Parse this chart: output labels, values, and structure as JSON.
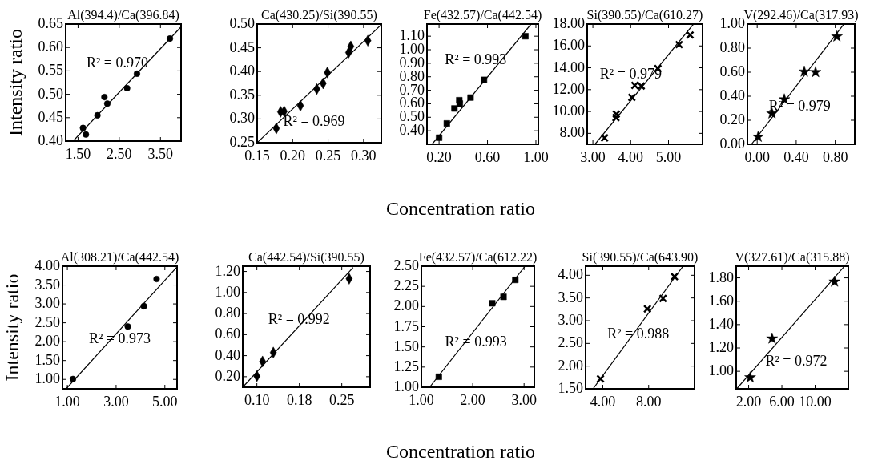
{
  "chart_data": [
    {
      "type": "scatter",
      "title": "Al(394.4)/Ca(396.84)",
      "ylabel": "Intensity ratio",
      "xlim": [
        1.2,
        4.0
      ],
      "ylim": [
        0.4,
        0.65
      ],
      "xticks": [
        {
          "value": 1.5,
          "label": "1.50"
        },
        {
          "value": 2.5,
          "label": "2.50"
        },
        {
          "value": 3.5,
          "label": "3.50"
        }
      ],
      "yticks": [
        {
          "value": 0.4,
          "label": "0.40"
        },
        0.45,
        {
          "value": 0.5,
          "label": "0.50"
        },
        0.55,
        {
          "value": 0.6,
          "label": "0.60"
        },
        0.65
      ],
      "annotations": [
        "R² = 0.970"
      ],
      "series": [
        {
          "type": "scatter",
          "marker": "circle",
          "color": "#000000",
          "x": [
            1.62,
            1.69,
            1.97,
            2.14,
            2.21,
            2.69,
            2.93,
            3.73
          ],
          "values": [
            0.428,
            0.414,
            0.455,
            0.494,
            0.48,
            0.513,
            0.544,
            0.619
          ]
        },
        {
          "type": "line",
          "marker": "none",
          "color": "#000000",
          "x": [
            1.38,
            4.0
          ],
          "values": [
            0.4,
            0.644
          ]
        }
      ]
    },
    {
      "type": "scatter",
      "title": "Ca(430.25)/Si(390.55)",
      "xlim": [
        0.15,
        0.325
      ],
      "ylim": [
        0.25,
        0.5
      ],
      "xticks": [
        {
          "value": 0.15,
          "label": "0.15"
        },
        {
          "value": 0.2,
          "label": "0.20"
        },
        {
          "value": 0.25,
          "label": "0.25"
        },
        {
          "value": 0.3,
          "label": "0.30"
        }
      ],
      "yticks": [
        {
          "value": 0.25,
          "label": "0.25"
        },
        {
          "value": 0.3,
          "label": "0.30"
        },
        {
          "value": 0.35,
          "label": "0.35"
        },
        {
          "value": 0.4,
          "label": "0.40"
        },
        {
          "value": 0.45,
          "label": "0.45"
        },
        {
          "value": 0.5,
          "label": "0.50"
        }
      ],
      "annotations": [
        "R² = 0.969"
      ],
      "series": [
        {
          "type": "scatter",
          "marker": "diamond",
          "color": "#000000",
          "x": [
            0.177,
            0.183,
            0.188,
            0.211,
            0.234,
            0.243,
            0.249,
            0.279,
            0.282,
            0.306
          ],
          "values": [
            0.28,
            0.315,
            0.316,
            0.328,
            0.363,
            0.375,
            0.398,
            0.44,
            0.453,
            0.465
          ]
        },
        {
          "type": "line",
          "marker": "none",
          "color": "#000000",
          "x": [
            0.15,
            0.325
          ],
          "values": [
            0.25,
            0.499
          ]
        }
      ]
    },
    {
      "type": "scatter",
      "title": "Fe(432.57)/Ca(442.54)",
      "xlabel": "Concentration ratio",
      "xlim": [
        0.1,
        1.02
      ],
      "ylim": [
        0.3,
        1.19
      ],
      "xticks": [
        {
          "value": 0.2,
          "label": "0.20"
        },
        {
          "value": 0.6,
          "label": "0.60"
        },
        {
          "value": 1,
          "label": "1.00"
        }
      ],
      "yticks": [
        {
          "value": 0.4,
          "label": "0.40"
        },
        {
          "value": 0.5,
          "label": "0.50"
        },
        {
          "value": 0.6,
          "label": "0.60"
        },
        {
          "value": 0.7,
          "label": "0.70"
        },
        {
          "value": 0.8,
          "label": "0.80"
        },
        {
          "value": 0.9,
          "label": "0.90"
        },
        {
          "value": 1,
          "label": "1.00"
        },
        {
          "value": 1.1,
          "label": "1.10"
        }
      ],
      "annotations": [
        "R² = 0.993"
      ],
      "series": [
        {
          "type": "scatter",
          "marker": "square",
          "color": "#000000",
          "x": [
            0.2,
            0.264,
            0.327,
            0.367,
            0.371,
            0.46,
            0.571,
            0.913
          ],
          "values": [
            0.349,
            0.454,
            0.565,
            0.626,
            0.601,
            0.646,
            0.777,
            1.1
          ]
        },
        {
          "type": "line",
          "marker": "none",
          "color": "#000000",
          "x": [
            0.142,
            0.96
          ],
          "values": [
            0.3,
            1.19
          ]
        }
      ]
    },
    {
      "type": "scatter",
      "title": "Si(390.55)/Ca(610.27)",
      "xlim": [
        2.85,
        5.9
      ],
      "ylim": [
        7,
        18
      ],
      "xticks": [
        {
          "value": 3,
          "label": "3.00"
        },
        {
          "value": 4,
          "label": "4.00"
        },
        {
          "value": 5,
          "label": "5.00"
        }
      ],
      "yticks": [
        {
          "value": 8,
          "label": "8.00"
        },
        {
          "value": 10,
          "label": "10.00"
        },
        {
          "value": 12,
          "label": "12.00"
        },
        {
          "value": 14,
          "label": "14.00"
        },
        {
          "value": 16,
          "label": "16.00"
        },
        {
          "value": 18,
          "label": "18.00"
        }
      ],
      "annotations": [
        "R² = 0.979"
      ],
      "series": [
        {
          "type": "scatter",
          "marker": "cross",
          "color": "#000000",
          "x": [
            3.31,
            3.61,
            3.62,
            4.03,
            4.11,
            4.28,
            4.72,
            5.28,
            5.57
          ],
          "values": [
            7.59,
            9.44,
            9.76,
            11.29,
            12.39,
            12.34,
            13.93,
            16.12,
            17.0
          ]
        },
        {
          "type": "line",
          "marker": "none",
          "color": "#000000",
          "x": [
            3.06,
            5.66
          ],
          "values": [
            7.02,
            18
          ]
        }
      ]
    },
    {
      "type": "scatter",
      "title": "V(292.46)/Ca(317.93)",
      "xlim": [
        -0.1,
        1.0
      ],
      "ylim": [
        0,
        1
      ],
      "xticks": [
        {
          "value": 0,
          "label": "0.00"
        },
        {
          "value": 0.4,
          "label": "0.40"
        },
        {
          "value": 0.8,
          "label": "0.80"
        }
      ],
      "yticks": [
        {
          "value": 0,
          "label": "0.00"
        },
        {
          "value": 0.2,
          "label": "0.20"
        },
        {
          "value": 0.4,
          "label": "0.40"
        },
        {
          "value": 0.6,
          "label": "0.60"
        },
        {
          "value": 0.8,
          "label": "0.80"
        },
        {
          "value": 1,
          "label": "1.00"
        }
      ],
      "annotations": [
        "R² = 0.979"
      ],
      "series": [
        {
          "type": "scatter",
          "marker": "star",
          "color": "#000000",
          "x": [
            0.01,
            0.152,
            0.278,
            0.483,
            0.598,
            0.817
          ],
          "values": [
            0.062,
            0.256,
            0.373,
            0.604,
            0.6,
            0.896
          ]
        },
        {
          "type": "line",
          "marker": "none",
          "color": "#000000",
          "x": [
            -0.059,
            0.885
          ],
          "values": [
            0,
            0.996
          ]
        }
      ]
    },
    {
      "type": "scatter",
      "title": "Al(308.21)/Ca(442.54)",
      "ylabel": "Intensity ratio",
      "xlim": [
        0.8,
        5.5
      ],
      "ylim": [
        0.75,
        4
      ],
      "xticks": [
        {
          "value": 1,
          "label": "1.00"
        },
        {
          "value": 3,
          "label": "3.00"
        },
        {
          "value": 5,
          "label": "5.00"
        }
      ],
      "yticks": [
        {
          "value": 1,
          "label": "1.00"
        },
        {
          "value": 1.5,
          "label": "1.50"
        },
        {
          "value": 2,
          "label": "2.00"
        },
        {
          "value": 2.5,
          "label": "2.50"
        },
        {
          "value": 3,
          "label": "3.00"
        },
        {
          "value": 3.5,
          "label": "3.50"
        },
        {
          "value": 4,
          "label": "4.00"
        }
      ],
      "annotations": [
        "R² = 0.973"
      ],
      "series": [
        {
          "type": "scatter",
          "marker": "circle",
          "color": "#000000",
          "x": [
            1.23,
            3.48,
            4.14,
            4.66
          ],
          "values": [
            1.01,
            2.4,
            2.94,
            3.66
          ]
        },
        {
          "type": "line",
          "marker": "none",
          "color": "#000000",
          "x": [
            0.95,
            5.5
          ],
          "values": [
            0.75,
            3.98
          ]
        }
      ]
    },
    {
      "type": "scatter",
      "title": "Ca(442.54)/Si(390.55)",
      "xlim": [
        0.075,
        0.3
      ],
      "ylim": [
        0.1,
        1.25
      ],
      "xticks": [
        {
          "value": 0.1,
          "label": "0.10"
        },
        {
          "value": 0.175,
          "label": "0.18"
        },
        0.25
      ],
      "yticks": [
        {
          "value": 0.2,
          "label": "0.20"
        },
        {
          "value": 0.4,
          "label": "0.40"
        },
        {
          "value": 0.6,
          "label": "0.60"
        },
        {
          "value": 0.8,
          "label": "0.80"
        },
        {
          "value": 1,
          "label": "1.00"
        },
        {
          "value": 1.2,
          "label": "1.20"
        }
      ],
      "annotations": [
        "R² = 0.992"
      ],
      "series": [
        {
          "type": "scatter",
          "marker": "diamond",
          "color": "#000000",
          "x": [
            0.1,
            0.11,
            0.129,
            0.263
          ],
          "values": [
            0.205,
            0.345,
            0.43,
            1.131
          ]
        },
        {
          "type": "line",
          "marker": "none",
          "color": "#000000",
          "x": [
            0.075,
            0.27
          ],
          "values": [
            0.1,
            1.238
          ]
        }
      ]
    },
    {
      "type": "scatter",
      "title": "Fe(432.57)/Ca(612.22)",
      "xlabel": "Concentration ratio",
      "xlim": [
        1.0,
        3.2
      ],
      "ylim": [
        1,
        2.5
      ],
      "xticks": [
        {
          "value": 1,
          "label": "1.00"
        },
        {
          "value": 2,
          "label": "2.00"
        },
        {
          "value": 3,
          "label": "3.00"
        }
      ],
      "yticks": [
        {
          "value": 1,
          "label": "1.00"
        },
        1.25,
        {
          "value": 1.5,
          "label": "1.50"
        },
        1.75,
        {
          "value": 2,
          "label": "2.00"
        },
        2.25,
        {
          "value": 2.5,
          "label": "2.50"
        }
      ],
      "annotations": [
        "R² = 0.993"
      ],
      "series": [
        {
          "type": "scatter",
          "marker": "square",
          "color": "#000000",
          "x": [
            1.34,
            2.38,
            2.6,
            2.83
          ],
          "values": [
            1.13,
            2.04,
            2.12,
            2.33
          ]
        },
        {
          "type": "line",
          "marker": "none",
          "color": "#000000",
          "x": [
            1.16,
            3.02
          ],
          "values": [
            1,
            2.5
          ]
        }
      ]
    },
    {
      "type": "scatter",
      "title": "Si(390.55)/Ca(643.90)",
      "xlim": [
        2.5,
        12
      ],
      "ylim": [
        1.5,
        4.2
      ],
      "xticks": [
        {
          "value": 4,
          "label": "4.00"
        },
        {
          "value": 8,
          "label": "8.00"
        }
      ],
      "yticks": [
        {
          "value": 1.5,
          "label": "1.50"
        },
        {
          "value": 2,
          "label": "2.00"
        },
        {
          "value": 2.5,
          "label": "2.50"
        },
        {
          "value": 3,
          "label": "3.00"
        },
        {
          "value": 3.5,
          "label": "3.50"
        },
        {
          "value": 4,
          "label": "4.00"
        }
      ],
      "annotations": [
        "R² = 0.988"
      ],
      "series": [
        {
          "type": "scatter",
          "marker": "cross",
          "color": "#000000",
          "x": [
            3.8,
            7.89,
            9.25,
            10.25
          ],
          "values": [
            1.72,
            3.26,
            3.49,
            3.97
          ]
        },
        {
          "type": "line",
          "marker": "none",
          "color": "#000000",
          "x": [
            3.15,
            11.0
          ],
          "values": [
            1.5,
            4.2
          ]
        }
      ]
    },
    {
      "type": "scatter",
      "title": "V(327.61)/Ca(315.88)",
      "xlim": [
        0.5,
        14
      ],
      "ylim": [
        0.85,
        1.9
      ],
      "xticks": [
        {
          "value": 2,
          "label": "2.00"
        },
        {
          "value": 6,
          "label": "6.00"
        },
        {
          "value": 10,
          "label": "10.00"
        }
      ],
      "yticks": [
        {
          "value": 1,
          "label": "1.00"
        },
        {
          "value": 1.2,
          "label": "1.20"
        },
        {
          "value": 1.4,
          "label": "1.40"
        },
        {
          "value": 1.6,
          "label": "1.60"
        },
        {
          "value": 1.8,
          "label": "1.80"
        }
      ],
      "annotations": [
        "R² = 0.972"
      ],
      "series": [
        {
          "type": "scatter",
          "marker": "star",
          "color": "#000000",
          "x": [
            2.18,
            4.82,
            12.34
          ],
          "values": [
            0.947,
            1.28,
            1.767
          ]
        },
        {
          "type": "line",
          "marker": "none",
          "color": "#000000",
          "x": [
            0.56,
            13.5
          ],
          "values": [
            0.85,
            1.897
          ]
        }
      ]
    }
  ]
}
